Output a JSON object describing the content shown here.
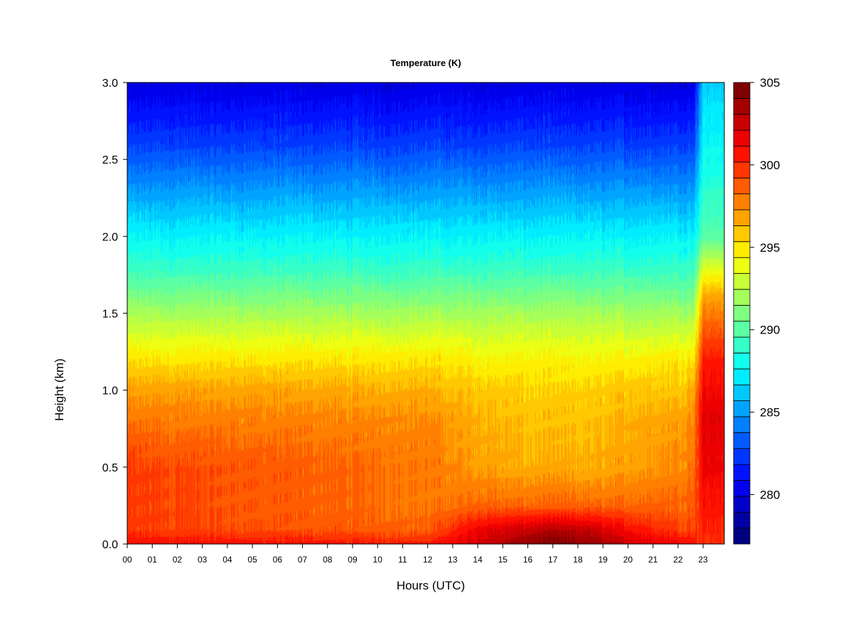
{
  "chart_data": {
    "type": "heatmap",
    "title": "Temperature (K)",
    "xlabel": "Hours (UTC)",
    "ylabel": "Height (km)",
    "x_ticks": [
      "00",
      "01",
      "02",
      "03",
      "04",
      "05",
      "06",
      "07",
      "08",
      "09",
      "10",
      "11",
      "12",
      "13",
      "14",
      "15",
      "16",
      "17",
      "18",
      "19",
      "20",
      "21",
      "22",
      "23"
    ],
    "xlim": [
      0,
      23.85
    ],
    "y_ticks": [
      "0.0",
      "0.5",
      "1.0",
      "1.5",
      "2.0",
      "2.5",
      "3.0"
    ],
    "ylim": [
      0,
      3.0
    ],
    "colorbar": {
      "ticks": [
        "280",
        "285",
        "290",
        "295",
        "300",
        "305"
      ],
      "range": [
        277,
        305
      ],
      "levels": 28,
      "colors": [
        "#00007f",
        "#0000a4",
        "#0000c8",
        "#0000ed",
        "#0012ff",
        "#0036ff",
        "#005bff",
        "#007fff",
        "#00a4ff",
        "#00c8ff",
        "#00edff",
        "#12ffed",
        "#36ffc8",
        "#5bffa4",
        "#7fff7f",
        "#a4ff5b",
        "#c8ff36",
        "#edff12",
        "#ffed00",
        "#ffc800",
        "#ffa400",
        "#ff7f00",
        "#ff5b00",
        "#ff3600",
        "#ff1200",
        "#ed0000",
        "#c80000",
        "#a40000",
        "#7f0000"
      ]
    },
    "profile_heights_km": [
      0.0,
      0.1,
      0.25,
      0.5,
      0.8,
      1.0,
      1.2,
      1.5,
      1.8,
      2.0,
      2.3,
      2.6,
      3.0
    ],
    "time_hours": [
      0,
      12,
      13,
      14,
      16,
      17,
      18.5,
      20,
      22,
      22.9
    ],
    "temperature_K": [
      [
        301.0,
        299.5,
        299.5,
        299.5,
        298.0,
        297.0,
        295.0,
        292.0,
        289.0,
        287.5,
        285.0,
        282.5,
        280.0
      ],
      [
        300.5,
        298.5,
        298.0,
        298.0,
        297.5,
        296.5,
        295.0,
        292.0,
        289.0,
        287.5,
        285.0,
        282.5,
        280.0
      ],
      [
        301.5,
        300.0,
        298.0,
        297.5,
        297.0,
        296.0,
        295.0,
        292.0,
        289.0,
        287.5,
        285.0,
        282.5,
        280.0
      ],
      [
        302.5,
        301.5,
        298.5,
        297.0,
        296.5,
        296.0,
        294.5,
        292.0,
        289.0,
        287.5,
        285.0,
        282.5,
        280.0
      ],
      [
        304.0,
        302.5,
        298.5,
        296.5,
        296.0,
        295.5,
        294.5,
        292.0,
        289.0,
        287.5,
        285.0,
        282.5,
        280.0
      ],
      [
        304.5,
        303.0,
        298.5,
        296.5,
        296.0,
        295.5,
        294.5,
        292.0,
        289.0,
        287.5,
        285.0,
        282.5,
        280.0
      ],
      [
        304.0,
        302.5,
        298.5,
        296.5,
        296.0,
        295.5,
        294.5,
        292.0,
        289.0,
        287.5,
        285.0,
        282.5,
        280.0
      ],
      [
        302.5,
        301.0,
        298.5,
        297.0,
        296.5,
        296.0,
        294.5,
        292.0,
        289.0,
        287.5,
        285.0,
        282.5,
        280.0
      ],
      [
        301.5,
        299.5,
        298.5,
        297.5,
        297.0,
        296.0,
        295.0,
        292.0,
        289.0,
        287.5,
        285.0,
        282.5,
        280.0
      ],
      [
        300.5,
        299.5,
        299.0,
        298.5,
        298.0,
        297.0,
        295.0,
        292.0,
        289.0,
        287.5,
        285.0,
        282.5,
        280.0
      ]
    ],
    "late_segment": {
      "time_hours": [
        23.0,
        23.85
      ],
      "note_heights_km": [
        0.0,
        0.5,
        0.8,
        1.2,
        1.6,
        2.0,
        2.5,
        3.0
      ],
      "temperature_K": [
        300.0,
        301.5,
        302.0,
        300.5,
        297.0,
        290.0,
        288.0,
        286.5
      ]
    }
  }
}
